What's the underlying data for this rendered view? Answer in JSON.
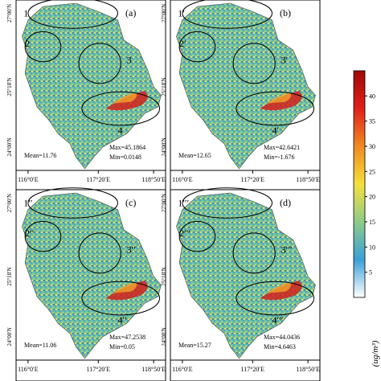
{
  "axes": {
    "y_ticks": [
      "27°00′N",
      "25°18′N",
      "24°00′N"
    ],
    "x_ticks": [
      "116°0′E",
      "117°20′E",
      "118°50′E"
    ]
  },
  "panels": [
    {
      "tag": "(a)",
      "mean": "Mean=11.76",
      "max": "Max=45.1864",
      "min": "Min=0.0148",
      "regions": [
        "1",
        "2",
        "3",
        "4"
      ]
    },
    {
      "tag": "(b)",
      "mean": "Mean=12.65",
      "max": "Max=42.6421",
      "min": "Min=-1.676",
      "regions": [
        "1′",
        "2′",
        "3′",
        "4′"
      ]
    },
    {
      "tag": "(c)",
      "mean": "Mean=11.06",
      "max": "Max=47.2538",
      "min": "Min=0.05",
      "regions": [
        "1′′",
        "2′′",
        "3′′",
        "4′′"
      ]
    },
    {
      "tag": "(d)",
      "mean": "Mean=15.27",
      "max": "Max=44.0436",
      "min": "Min=4.6463",
      "regions": [
        "1′′′",
        "2′′′",
        "3′′′",
        "4′′′"
      ]
    }
  ],
  "colorbar": {
    "ticks": [
      "40",
      "35",
      "30",
      "25",
      "20",
      "15",
      "10",
      "5"
    ],
    "label": "(ug/m³)",
    "min": 0,
    "max": 45,
    "colors": [
      "#ffffff",
      "#3aa0d8",
      "#8ecb8a",
      "#f5e03c",
      "#f08a22",
      "#e0201a",
      "#a00808"
    ]
  }
}
